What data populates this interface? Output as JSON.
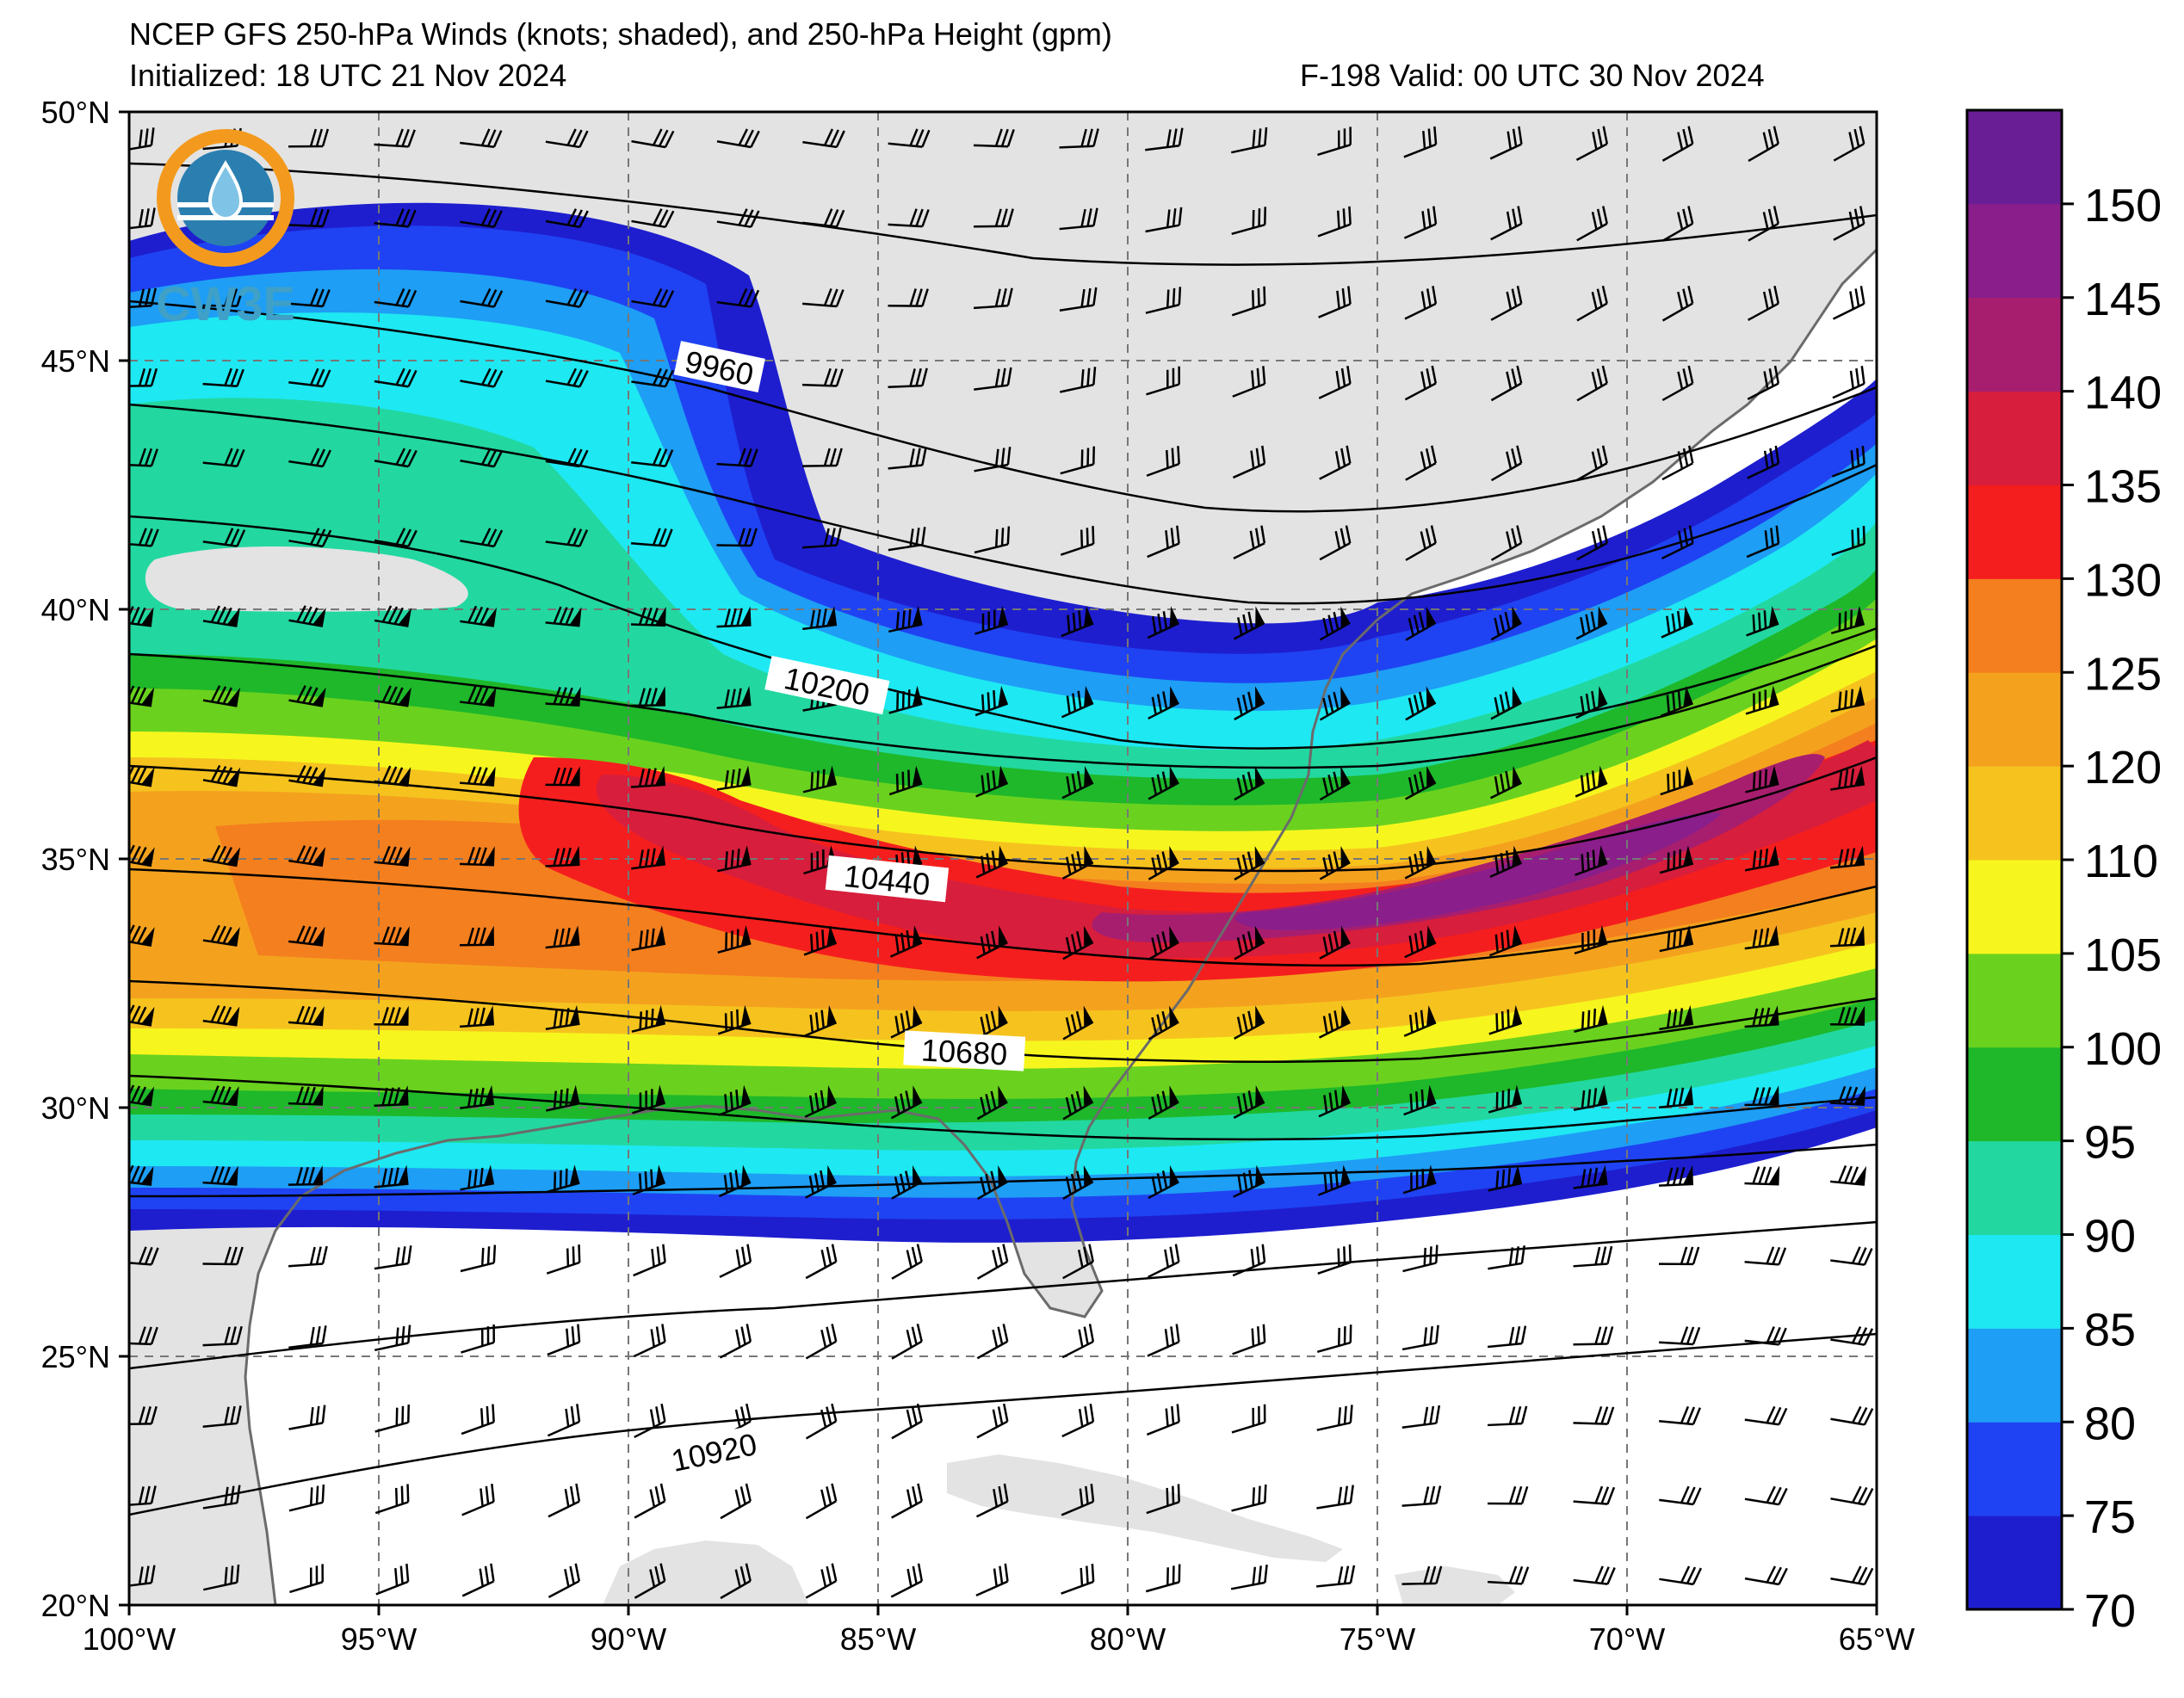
{
  "title": {
    "line1": "NCEP GFS 250-hPa Winds (knots; shaded), and 250-hPa Height (gpm)",
    "initialized": "Initialized: 18 UTC 21 Nov 2024",
    "valid": "F-198  Valid: 00 UTC 30 Nov 2024"
  },
  "logo": {
    "text": "CW3E",
    "colors": [
      "#f39a1e",
      "#2a7fb0",
      "#3fa0c8"
    ]
  },
  "map": {
    "lon_range": [
      -100,
      -65
    ],
    "lat_range": [
      20,
      50
    ],
    "lat_labels": [
      "50°N",
      "45°N",
      "40°N",
      "35°N",
      "30°N",
      "25°N",
      "20°N"
    ],
    "lon_labels": [
      "100°W",
      "95°W",
      "90°W",
      "85°W",
      "80°W",
      "75°W",
      "70°W",
      "65°W"
    ],
    "land_color": "#e3e3e3",
    "ocean_color": "#ffffff"
  },
  "height_contours": [
    {
      "label": "9960"
    },
    {
      "label": "10200"
    },
    {
      "label": "10440"
    },
    {
      "label": "10680"
    },
    {
      "label": "10920"
    }
  ],
  "colorbar": {
    "ticks": [
      "70",
      "75",
      "80",
      "85",
      "90",
      "95",
      "100",
      "105",
      "110",
      "120",
      "125",
      "130",
      "135",
      "140",
      "145",
      "150"
    ],
    "colors": [
      "#1e1ecf",
      "#1f43f2",
      "#1e9ef5",
      "#1ee8f2",
      "#22d8a0",
      "#1eb82a",
      "#6ad21e",
      "#f6f61e",
      "#f6c31e",
      "#f4a21e",
      "#f47f1e",
      "#f51e1e",
      "#d71e3c",
      "#a81e6e",
      "#8a1e8a",
      "#6a1e96"
    ]
  }
}
